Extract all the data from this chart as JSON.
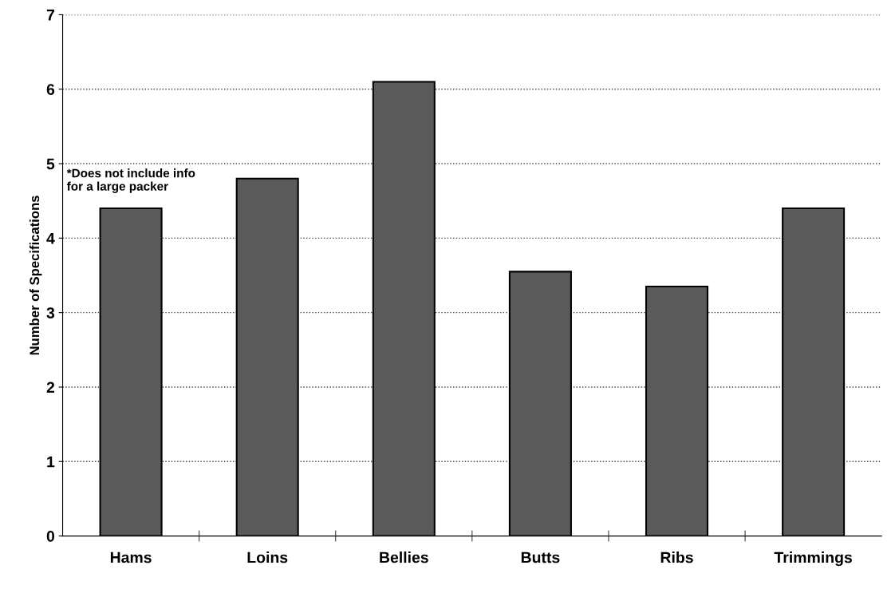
{
  "chart_data": {
    "type": "bar",
    "ylabel": "Number of Specifications",
    "categories": [
      "Hams",
      "Loins",
      "Bellies",
      "Butts",
      "Ribs",
      "Trimmings"
    ],
    "values": [
      4.4,
      4.8,
      6.1,
      3.55,
      3.35,
      4.4
    ],
    "color": "#5a5a5a",
    "ylim": [
      0,
      7
    ],
    "yticks": [
      0,
      1,
      2,
      3,
      4,
      5,
      6,
      7
    ],
    "grid": "y",
    "annotations": [
      "*Does not include info\nfor a large packer"
    ]
  }
}
